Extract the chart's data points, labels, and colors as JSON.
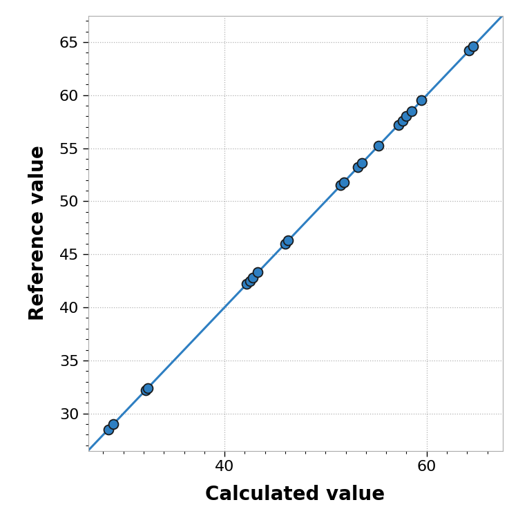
{
  "x_data": [
    28.5,
    29.0,
    32.2,
    32.4,
    42.2,
    42.5,
    42.8,
    43.3,
    46.0,
    46.3,
    51.5,
    51.8,
    53.2,
    53.6,
    55.2,
    57.2,
    57.6,
    58.0,
    58.5,
    59.5,
    64.2,
    64.6
  ],
  "y_data": [
    28.5,
    29.0,
    32.2,
    32.4,
    42.2,
    42.5,
    42.8,
    43.3,
    46.0,
    46.3,
    51.5,
    51.8,
    53.2,
    53.6,
    55.2,
    57.2,
    57.6,
    58.0,
    58.5,
    59.5,
    64.2,
    64.6
  ],
  "line_x": [
    26.0,
    67.5
  ],
  "line_y": [
    26.0,
    67.5
  ],
  "dot_color": "#2e7fc2",
  "dot_edge_color": "#1a1a1a",
  "dot_size": 100,
  "line_color": "#2e7fc2",
  "line_width": 2.2,
  "xlabel": "Calculated value",
  "ylabel": "Reference value",
  "xlim": [
    26.5,
    67.5
  ],
  "ylim": [
    26.5,
    67.5
  ],
  "xticks": [
    40,
    60
  ],
  "yticks": [
    30,
    35,
    40,
    45,
    50,
    55,
    60,
    65
  ],
  "xlabel_fontsize": 20,
  "ylabel_fontsize": 20,
  "tick_fontsize": 16,
  "grid_color": "#b0b0b0",
  "bg_color": "#ffffff",
  "plot_bg_color": "#ffffff"
}
